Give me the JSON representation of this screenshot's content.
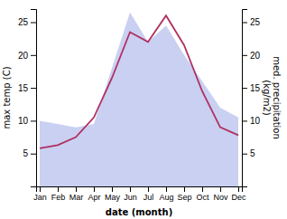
{
  "chart_data": {
    "type": "line",
    "x": [
      1,
      2,
      3,
      4,
      5,
      6,
      7,
      8,
      9,
      10,
      11,
      12
    ],
    "xlim": [
      0.8,
      12.2
    ],
    "xticks": [
      {
        "value": 1,
        "label": "Jan"
      },
      {
        "value": 2,
        "label": "Feb"
      },
      {
        "value": 3,
        "label": "Mar"
      },
      {
        "value": 4,
        "label": "Apr"
      },
      {
        "value": 5,
        "label": "May"
      },
      {
        "value": 6,
        "label": "Jun"
      },
      {
        "value": 7,
        "label": "Jul"
      },
      {
        "value": 8,
        "label": "Aug"
      },
      {
        "value": 9,
        "label": "Sep"
      },
      {
        "value": 10,
        "label": "Oct"
      },
      {
        "value": 11,
        "label": "Nov"
      },
      {
        "value": 12,
        "label": "Dec"
      }
    ],
    "xlabel": "date (month)",
    "ylabel": "max temp (C)",
    "y2label": "med. precipitation\n(kg/m2)",
    "ylim": [
      0,
      27
    ],
    "yticks": [
      5,
      10,
      15,
      20,
      25
    ],
    "y2lim": [
      0,
      27
    ],
    "y2ticks": [
      5,
      10,
      15,
      20,
      25
    ],
    "series": [
      {
        "type": "area",
        "axis": "y2",
        "color": "#c0c8f0",
        "values": [
          10.0,
          9.5,
          9.0,
          9.5,
          18.0,
          26.5,
          22.0,
          24.5,
          20.0,
          16.0,
          12.0,
          10.5
        ]
      },
      {
        "type": "line",
        "color": "#b03060",
        "values": [
          5.8,
          6.3,
          7.5,
          10.5,
          16.5,
          23.5,
          22.0,
          26.0,
          21.5,
          14.5,
          9.0,
          7.8
        ]
      }
    ]
  }
}
